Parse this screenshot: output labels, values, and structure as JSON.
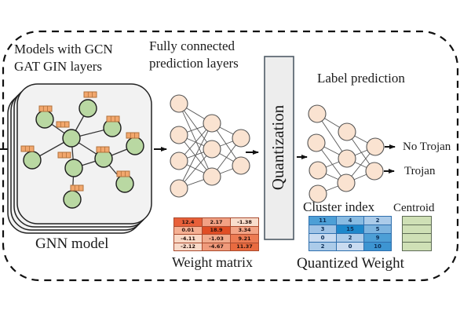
{
  "labels": {
    "models_line1": "Models with GCN",
    "models_line2": "GAT GIN layers",
    "fc_line1": "Fully connected",
    "fc_line2": "prediction layers",
    "quantization": "Quantization",
    "label_prediction": "Label prediction",
    "gnn_model": "GNN model",
    "no_trojan": "No Trojan",
    "trojan": "Trojan",
    "weight_matrix": "Weight matrix",
    "cluster_index": "Cluster index",
    "centroid": "Centroid",
    "quantized_weight": "Quantized Weight"
  },
  "weight_matrix": {
    "rows": [
      [
        {
          "v": "12.4",
          "c": "#e8603a"
        },
        {
          "v": "2.17",
          "c": "#f2a184"
        },
        {
          "v": "-1.38",
          "c": "#f9ddcc"
        }
      ],
      [
        {
          "v": "0.01",
          "c": "#f5b093"
        },
        {
          "v": "18.9",
          "c": "#e04e25"
        },
        {
          "v": "3.34",
          "c": "#f3a486"
        }
      ],
      [
        {
          "v": "-4.11",
          "c": "#f9d8c5"
        },
        {
          "v": "-1.03",
          "c": "#f1ab8d"
        },
        {
          "v": "9.21",
          "c": "#ed7b53"
        }
      ],
      [
        {
          "v": "-2.12",
          "c": "#f8dac9"
        },
        {
          "v": "-4.67",
          "c": "#f09b7c"
        },
        {
          "v": "11.37",
          "c": "#e96b40"
        }
      ]
    ]
  },
  "cluster_index": {
    "rows": [
      [
        {
          "v": "11",
          "c": "#4d9fd6"
        },
        {
          "v": "4",
          "c": "#88bbe2"
        },
        {
          "v": "2",
          "c": "#abcbe9"
        }
      ],
      [
        {
          "v": "3",
          "c": "#9fc3e6"
        },
        {
          "v": "15",
          "c": "#1e88cb"
        },
        {
          "v": "5",
          "c": "#7db4df"
        }
      ],
      [
        {
          "v": "0",
          "c": "#c9dbf0"
        },
        {
          "v": "2",
          "c": "#abcbe9"
        },
        {
          "v": "9",
          "c": "#4d9fd6"
        }
      ],
      [
        {
          "v": "2",
          "c": "#abcbe9"
        },
        {
          "v": "0",
          "c": "#c9dbf0"
        },
        {
          "v": "10",
          "c": "#3d95d2"
        }
      ]
    ]
  },
  "centroid": {
    "rows": [
      [
        {
          "v": "",
          "c": "#cfe0b6"
        }
      ],
      [
        {
          "v": "",
          "c": "#cfe0b6"
        }
      ],
      [
        {
          "v": "",
          "c": "#cfe0b6"
        }
      ],
      [
        {
          "v": "",
          "c": "#cfe0b6"
        }
      ]
    ]
  },
  "colors": {
    "graph_node": "#b9d8a2",
    "graph_node_stroke": "#1c1c1c",
    "feature_fill": "#f2a76d",
    "feature_stroke": "#b0703a",
    "nn_node": "#fae3d1",
    "nn_stroke": "#555555",
    "box_fill": "#f2f2f2",
    "box_stroke": "#222222",
    "quant_fill": "#ededed",
    "quant_stroke": "#4f5b66",
    "arrow": "#111111",
    "dash": "#111111",
    "wm_grid": "#a94a2e",
    "ci_grid": "#2f6fad",
    "cen_grid": "#5d6b55"
  }
}
